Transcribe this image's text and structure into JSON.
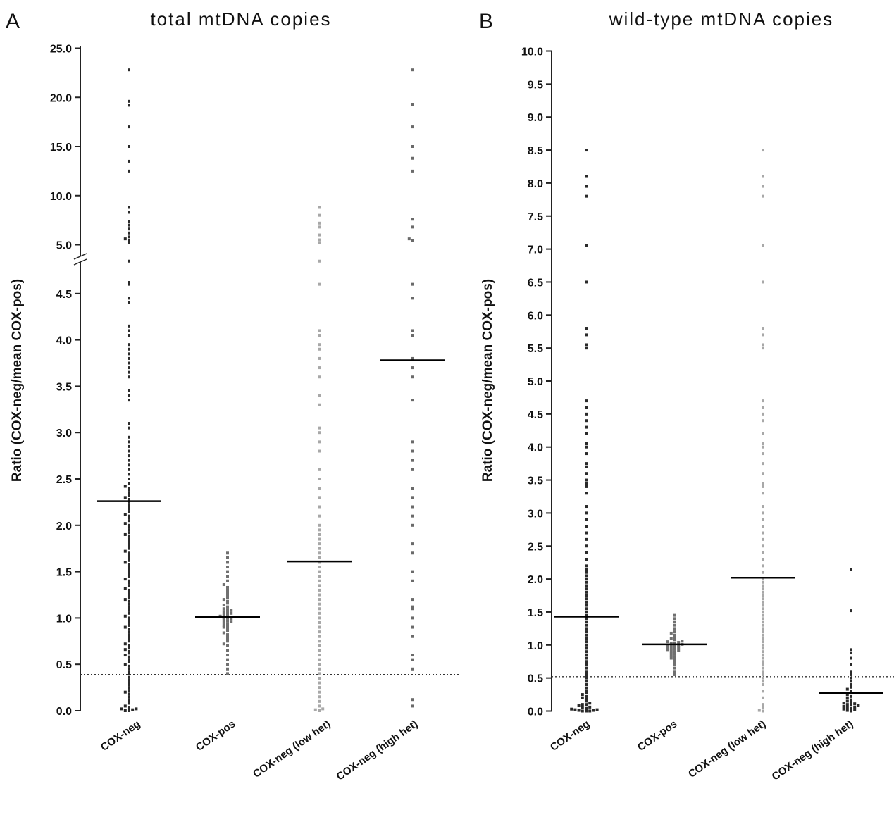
{
  "chart_data": [
    {
      "type": "scatter",
      "panel": "A",
      "title": "total mtDNA copies",
      "ylabel": "Ratio (COX-neg/mean COX-pos)",
      "ylim": [
        0,
        25
      ],
      "axis_break": [
        4.9,
        5.0
      ],
      "y_ticks": [
        "0.0",
        "0.5",
        "1.0",
        "1.5",
        "2.0",
        "2.5",
        "3.0",
        "3.5",
        "4.0",
        "4.5",
        "5.0",
        "10.0",
        "15.0",
        "20.0",
        "25.0"
      ],
      "categories": [
        "COX-neg",
        "COX-pos",
        "COX-neg (low het)",
        "COX-neg (high het)"
      ],
      "category_colors": [
        "#2a2a2a",
        "#707070",
        "#a8a8a8",
        "#6a6a6a"
      ],
      "threshold": 0.39,
      "means": [
        2.26,
        1.01,
        1.61,
        3.78
      ],
      "series": [
        {
          "values": [
            0.0,
            0.0,
            0.01,
            0.02,
            0.02,
            0.03,
            0.05,
            0.08,
            0.1,
            0.12,
            0.15,
            0.18,
            0.2,
            0.22,
            0.25,
            0.28,
            0.3,
            0.33,
            0.36,
            0.4,
            0.42,
            0.45,
            0.48,
            0.5,
            0.53,
            0.55,
            0.58,
            0.6,
            0.62,
            0.64,
            0.66,
            0.68,
            0.7,
            0.72,
            0.75,
            0.78,
            0.8,
            0.82,
            0.85,
            0.88,
            0.9,
            0.92,
            0.95,
            0.98,
            1.0,
            1.02,
            1.05,
            1.08,
            1.1,
            1.12,
            1.15,
            1.18,
            1.2,
            1.22,
            1.25,
            1.28,
            1.3,
            1.32,
            1.35,
            1.38,
            1.4,
            1.42,
            1.45,
            1.48,
            1.5,
            1.52,
            1.55,
            1.58,
            1.6,
            1.62,
            1.65,
            1.68,
            1.7,
            1.72,
            1.75,
            1.78,
            1.8,
            1.82,
            1.85,
            1.88,
            1.9,
            1.92,
            1.95,
            1.98,
            2.0,
            2.02,
            2.05,
            2.08,
            2.1,
            2.12,
            2.15,
            2.18,
            2.2,
            2.22,
            2.25,
            2.28,
            2.3,
            2.32,
            2.35,
            2.38,
            2.4,
            2.42,
            2.45,
            2.5,
            2.55,
            2.6,
            2.65,
            2.7,
            2.75,
            2.8,
            2.85,
            2.9,
            2.95,
            3.05,
            3.1,
            3.35,
            3.4,
            3.45,
            3.6,
            3.65,
            3.7,
            3.75,
            3.8,
            3.85,
            3.9,
            3.95,
            4.05,
            4.1,
            4.15,
            4.4,
            4.45,
            4.6,
            4.62,
            4.85,
            5.2,
            5.4,
            5.6,
            5.8,
            6.2,
            6.6,
            7.0,
            7.4,
            8.3,
            8.8,
            12.5,
            13.5,
            15.0,
            17.0,
            19.2,
            19.6,
            22.8
          ]
        },
        {
          "values": [
            0.4,
            0.45,
            0.5,
            0.55,
            0.6,
            0.65,
            0.7,
            0.72,
            0.75,
            0.78,
            0.8,
            0.82,
            0.84,
            0.86,
            0.88,
            0.9,
            0.91,
            0.92,
            0.94,
            0.95,
            0.96,
            0.97,
            0.98,
            0.99,
            1.0,
            1.0,
            1.01,
            1.02,
            1.03,
            1.04,
            1.05,
            1.06,
            1.07,
            1.08,
            1.09,
            1.1,
            1.12,
            1.14,
            1.16,
            1.18,
            1.2,
            1.22,
            1.25,
            1.28,
            1.3,
            1.33,
            1.36,
            1.4,
            1.45,
            1.5,
            1.55,
            1.6,
            1.65,
            1.7
          ]
        },
        {
          "values": [
            0.0,
            0.01,
            0.02,
            0.05,
            0.1,
            0.15,
            0.2,
            0.25,
            0.3,
            0.35,
            0.4,
            0.45,
            0.5,
            0.55,
            0.6,
            0.65,
            0.7,
            0.75,
            0.8,
            0.85,
            0.9,
            0.95,
            1.0,
            1.05,
            1.1,
            1.15,
            1.2,
            1.25,
            1.3,
            1.35,
            1.4,
            1.45,
            1.5,
            1.55,
            1.6,
            1.65,
            1.7,
            1.75,
            1.8,
            1.85,
            1.9,
            1.95,
            2.0,
            2.1,
            2.2,
            2.3,
            2.4,
            2.5,
            2.6,
            2.8,
            2.9,
            3.0,
            3.05,
            3.3,
            3.4,
            3.6,
            3.7,
            3.8,
            3.9,
            3.95,
            4.05,
            4.1,
            4.6,
            4.85,
            5.2,
            5.5,
            6.0,
            6.8,
            7.2,
            8.0,
            8.8
          ]
        },
        {
          "values": [
            0.05,
            0.12,
            0.45,
            0.55,
            0.6,
            0.8,
            0.9,
            1.0,
            1.1,
            1.12,
            1.2,
            1.4,
            1.5,
            1.7,
            1.8,
            2.0,
            2.1,
            2.2,
            2.3,
            2.4,
            2.6,
            2.7,
            2.8,
            2.9,
            3.35,
            3.6,
            3.7,
            3.8,
            4.05,
            4.1,
            4.45,
            4.6,
            5.4,
            5.6,
            6.8,
            7.6,
            12.5,
            13.8,
            15.0,
            17.0,
            19.3,
            22.8
          ]
        }
      ]
    },
    {
      "type": "scatter",
      "panel": "B",
      "title": "wild-type mtDNA copies",
      "ylabel": "Ratio (COX-neg/mean COX-pos)",
      "ylim": [
        0,
        10
      ],
      "y_ticks": [
        "0.0",
        "0.5",
        "1.0",
        "1.5",
        "2.0",
        "2.5",
        "3.0",
        "3.5",
        "4.0",
        "4.5",
        "5.0",
        "5.5",
        "6.0",
        "6.5",
        "7.0",
        "7.5",
        "8.0",
        "8.5",
        "9.0",
        "9.5",
        "10.0"
      ],
      "categories": [
        "COX-neg",
        "COX-pos",
        "COX-neg (low het)",
        "COX-neg (high het)"
      ],
      "category_colors": [
        "#2a2a2a",
        "#707070",
        "#a8a8a8",
        "#2a2a2a"
      ],
      "threshold": 0.52,
      "means": [
        1.43,
        1.01,
        2.02,
        0.27
      ],
      "series": [
        {
          "values": [
            0.0,
            0.0,
            0.0,
            0.01,
            0.01,
            0.02,
            0.02,
            0.03,
            0.04,
            0.05,
            0.06,
            0.08,
            0.1,
            0.1,
            0.12,
            0.15,
            0.18,
            0.2,
            0.22,
            0.25,
            0.28,
            0.3,
            0.35,
            0.4,
            0.45,
            0.5,
            0.52,
            0.55,
            0.6,
            0.65,
            0.7,
            0.75,
            0.8,
            0.85,
            0.9,
            0.95,
            1.0,
            1.05,
            1.1,
            1.15,
            1.2,
            1.25,
            1.3,
            1.35,
            1.4,
            1.45,
            1.5,
            1.55,
            1.6,
            1.65,
            1.7,
            1.75,
            1.8,
            1.85,
            1.9,
            1.95,
            2.0,
            2.05,
            2.1,
            2.15,
            2.2,
            2.3,
            2.4,
            2.5,
            2.6,
            2.7,
            2.8,
            2.9,
            3.0,
            3.1,
            3.3,
            3.4,
            3.45,
            3.5,
            3.6,
            3.7,
            3.75,
            3.9,
            4.0,
            4.05,
            4.2,
            4.3,
            4.4,
            4.5,
            4.6,
            4.7,
            5.5,
            5.55,
            5.7,
            5.8,
            6.5,
            7.05,
            7.8,
            7.95,
            8.1,
            8.5
          ]
        },
        {
          "values": [
            0.55,
            0.6,
            0.65,
            0.7,
            0.75,
            0.78,
            0.8,
            0.82,
            0.84,
            0.86,
            0.88,
            0.9,
            0.91,
            0.92,
            0.93,
            0.94,
            0.95,
            0.96,
            0.97,
            0.98,
            0.99,
            1.0,
            1.0,
            1.01,
            1.02,
            1.03,
            1.04,
            1.05,
            1.06,
            1.08,
            1.1,
            1.12,
            1.15,
            1.18,
            1.2,
            1.25,
            1.3,
            1.35,
            1.4,
            1.45
          ]
        },
        {
          "values": [
            0.0,
            0.01,
            0.05,
            0.1,
            0.2,
            0.3,
            0.4,
            0.45,
            0.5,
            0.55,
            0.6,
            0.65,
            0.7,
            0.75,
            0.8,
            0.85,
            0.9,
            0.95,
            1.0,
            1.05,
            1.1,
            1.15,
            1.2,
            1.25,
            1.3,
            1.35,
            1.4,
            1.45,
            1.5,
            1.55,
            1.6,
            1.65,
            1.7,
            1.75,
            1.8,
            1.85,
            1.9,
            1.95,
            2.0,
            2.1,
            2.2,
            2.3,
            2.4,
            2.5,
            2.6,
            2.7,
            2.8,
            2.9,
            3.0,
            3.1,
            3.3,
            3.4,
            3.45,
            3.6,
            3.75,
            3.9,
            4.0,
            4.05,
            4.2,
            4.4,
            4.5,
            4.6,
            4.7,
            5.5,
            5.55,
            5.7,
            5.8,
            6.5,
            7.05,
            7.8,
            7.95,
            8.1,
            8.5
          ]
        },
        {
          "values": [
            0.0,
            0.01,
            0.02,
            0.03,
            0.04,
            0.05,
            0.06,
            0.07,
            0.08,
            0.09,
            0.1,
            0.11,
            0.12,
            0.13,
            0.15,
            0.17,
            0.2,
            0.22,
            0.25,
            0.28,
            0.3,
            0.33,
            0.36,
            0.4,
            0.45,
            0.5,
            0.55,
            0.6,
            0.7,
            0.8,
            0.88,
            0.93,
            1.52,
            2.15
          ]
        }
      ]
    }
  ]
}
